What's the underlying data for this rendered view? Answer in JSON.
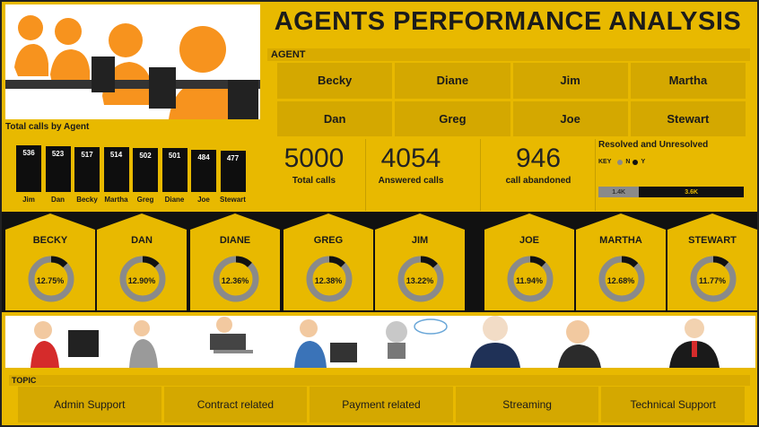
{
  "title": "AGENTS PERFORMANCE ANALYSIS",
  "agent_slicer": {
    "header": "AGENT",
    "options": [
      "Becky",
      "Diane",
      "Jim",
      "Martha",
      "Dan",
      "Greg",
      "Joe",
      "Stewart"
    ]
  },
  "calls_by_agent": {
    "title": "Total calls by Agent",
    "chart_data": {
      "type": "bar",
      "categories": [
        "Jim",
        "Dan",
        "Becky",
        "Martha",
        "Greg",
        "Diane",
        "Joe",
        "Stewart"
      ],
      "values": [
        536,
        523,
        517,
        514,
        502,
        501,
        484,
        477
      ]
    }
  },
  "kpis": [
    {
      "value": "5000",
      "label": "Total calls"
    },
    {
      "value": "4054",
      "label": "Answered calls"
    },
    {
      "value": "946",
      "label": "call abandoned"
    }
  ],
  "resolved": {
    "title": "Resolved and Unresolved",
    "key_label": "KEY",
    "key_n": "N",
    "key_y": "Y",
    "n_value": "1.4K",
    "y_value": "3.6K",
    "n_share": 0.28,
    "colors": {
      "n": "#8a8a8a",
      "y": "#111111"
    }
  },
  "agent_shares": {
    "chart_data": {
      "type": "pie",
      "categories": [
        "BECKY",
        "DAN",
        "DIANE",
        "GREG",
        "JIM",
        "JOE",
        "MARTHA",
        "STEWART"
      ],
      "values": [
        12.75,
        12.9,
        12.36,
        12.38,
        13.22,
        11.94,
        12.68,
        11.77
      ]
    },
    "labels": [
      "12.75%",
      "12.90%",
      "12.36%",
      "12.38%",
      "13.22%",
      "11.94%",
      "12.68%",
      "11.77%"
    ]
  },
  "topic_slicer": {
    "header": "TOPIC",
    "options": [
      "Admin Support",
      "Contract related",
      "Payment related",
      "Streaming",
      "Technical Support"
    ]
  },
  "colors": {
    "background": "#e8b900",
    "tile": "#d4a800",
    "bar": "#0e0e0e",
    "donut_track": "#8a8a8a",
    "donut_fill": "#111111"
  }
}
